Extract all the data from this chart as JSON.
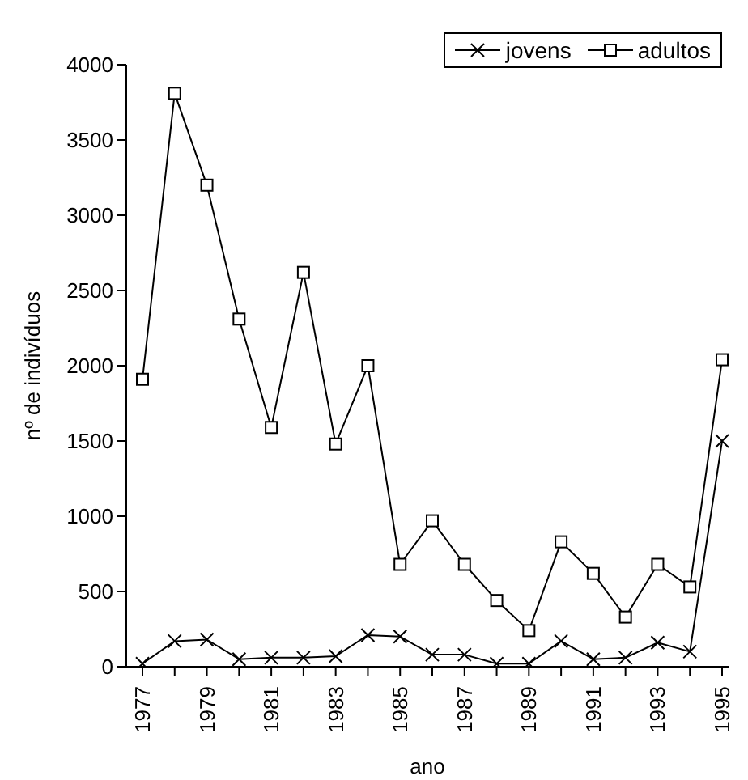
{
  "chart_data": {
    "type": "line",
    "xlabel": "ano",
    "ylabel": "nº de indivíduos",
    "categories": [
      "1977",
      null,
      "1979",
      null,
      "1981",
      null,
      "1983",
      null,
      "1985",
      null,
      "1987",
      null,
      "1989",
      null,
      "1991",
      null,
      "1993",
      null,
      "1995"
    ],
    "ylim": [
      0,
      4000
    ],
    "yticks": [
      0,
      500,
      1000,
      1500,
      2000,
      2500,
      3000,
      3500,
      4000
    ],
    "legend": "top right",
    "grid": false,
    "line_style": "solid",
    "series": [
      {
        "name": "jovens",
        "color": "#000000",
        "marker": "cross",
        "values": [
          20,
          170,
          180,
          50,
          60,
          60,
          70,
          210,
          200,
          80,
          80,
          20,
          20,
          170,
          50,
          60,
          160,
          100,
          1500
        ]
      },
      {
        "name": "adultos",
        "color": "#000000",
        "marker": "square",
        "values": [
          1910,
          3810,
          3200,
          2310,
          1590,
          2620,
          1480,
          2000,
          680,
          970,
          680,
          440,
          240,
          830,
          620,
          330,
          680,
          530,
          2040
        ]
      }
    ]
  }
}
